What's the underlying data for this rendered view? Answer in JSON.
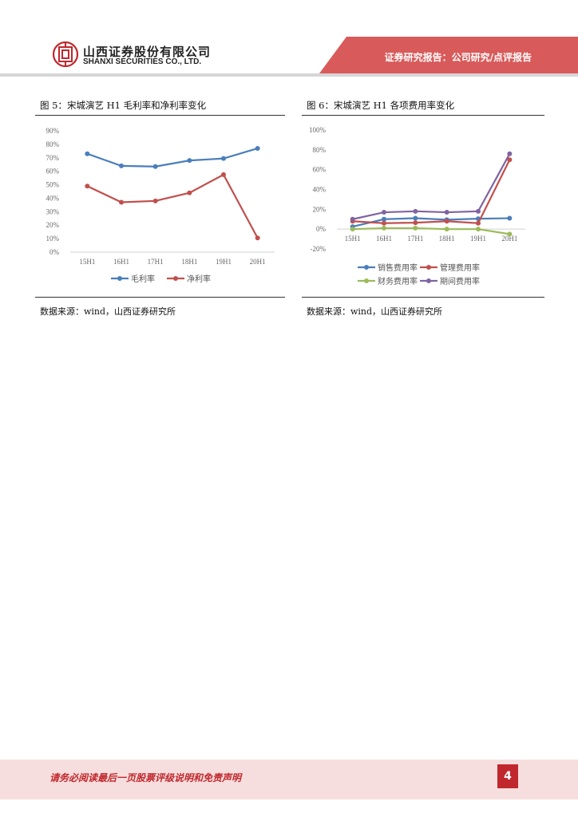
{
  "header": {
    "brand_cn": "山西证券股份有限公司",
    "brand_en": "SHANXI SECURITIES CO., LTD.",
    "report_type": "证券研究报告：公司研究/点评报告",
    "colors": {
      "accent": "#c0282d",
      "band": "#d85a5a"
    },
    "logo_icon": "shanxi-securities-logo-icon"
  },
  "figures": [
    {
      "title": "图 5：宋城演艺 H1 毛利率和净利率变化",
      "source": "数据来源：wind，山西证券研究所",
      "chart_data": {
        "type": "line",
        "categories": [
          "15H1",
          "16H1",
          "17H1",
          "18H1",
          "19H1",
          "20H1"
        ],
        "y_ticks": [
          "0%",
          "10%",
          "20%",
          "30%",
          "40%",
          "50%",
          "60%",
          "70%",
          "80%",
          "90%"
        ],
        "ylim": [
          0,
          90
        ],
        "grid": false,
        "legend_position": "bottom",
        "series": [
          {
            "name": "毛利率",
            "color": "#4a7ebb",
            "values": [
              73,
              64,
              63.5,
              68,
              69.5,
              77
            ]
          },
          {
            "name": "净利率",
            "color": "#c0504d",
            "values": [
              49,
              37,
              38,
              44,
              57.5,
              10.5
            ]
          }
        ]
      }
    },
    {
      "title": "图 6：宋城演艺 H1 各项费用率变化",
      "source": "数据来源：wind，山西证券研究所",
      "chart_data": {
        "type": "line",
        "categories": [
          "15H1",
          "16H1",
          "17H1",
          "18H1",
          "19H1",
          "20H1"
        ],
        "y_ticks": [
          "-20%",
          "0%",
          "20%",
          "40%",
          "60%",
          "80%",
          "100%"
        ],
        "ylim": [
          -20,
          100
        ],
        "grid": false,
        "legend_position": "bottom",
        "series": [
          {
            "name": "销售费用率",
            "color": "#4a7ebb",
            "values": [
              2.5,
              10,
              11,
              9.5,
              10.5,
              11
            ]
          },
          {
            "name": "管理费用率",
            "color": "#c0504d",
            "values": [
              8,
              6,
              6.5,
              8,
              6,
              70
            ]
          },
          {
            "name": "财务费用率",
            "color": "#9bbb59",
            "values": [
              0,
              1,
              1,
              0,
              0,
              -5
            ]
          },
          {
            "name": "期间费用率",
            "color": "#8064a2",
            "values": [
              10,
              17,
              18,
              17,
              18,
              76
            ]
          }
        ]
      }
    }
  ],
  "footer": {
    "disclaimer": "请务必阅读最后一页股票评级说明和免责声明",
    "page_number": "4"
  }
}
